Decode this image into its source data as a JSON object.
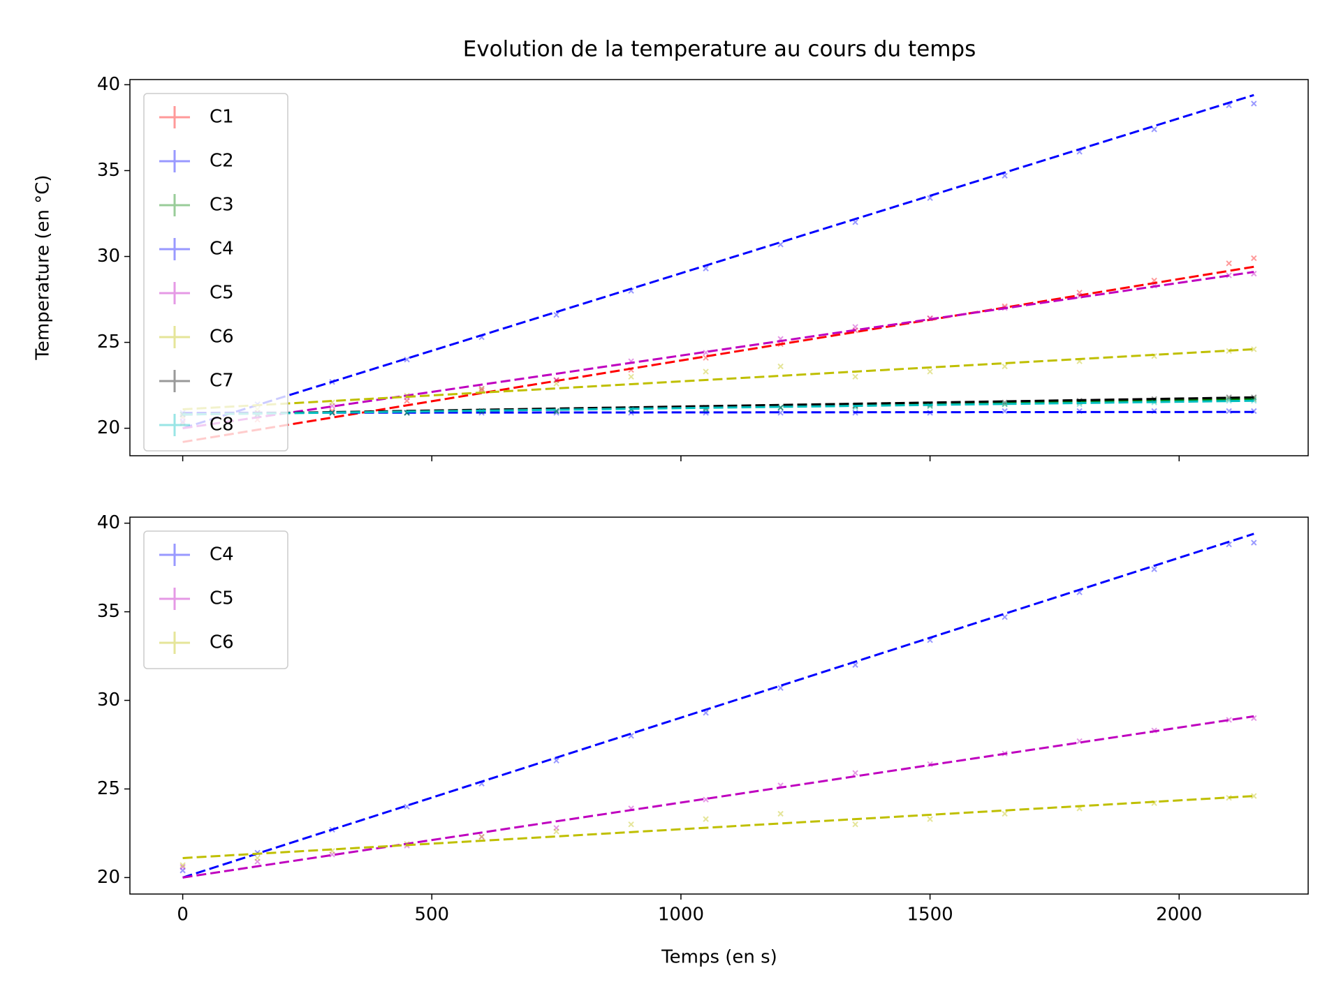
{
  "chart_data": [
    {
      "type": "scatter",
      "title": "Evolution de la temperature au cours du temps",
      "y_label": "Temperature (en °C)",
      "x": [
        0,
        150,
        300,
        450,
        600,
        750,
        900,
        1050,
        1200,
        1350,
        1500,
        1650,
        1800,
        1950,
        2100,
        2150
      ],
      "trend_x": [
        0,
        2150
      ],
      "series": [
        {
          "name": "C1",
          "color": "#ff0000",
          "values": [
            20.3,
            20.5,
            21.0,
            21.6,
            22.2,
            22.8,
            23.4,
            24.1,
            24.9,
            25.7,
            26.4,
            27.1,
            27.9,
            28.6,
            29.6,
            29.9
          ],
          "trend": [
            19.2,
            29.4
          ]
        },
        {
          "name": "C2",
          "color": "#0000ff",
          "values": [
            20.9,
            20.9,
            20.9,
            20.9,
            20.9,
            20.9,
            20.9,
            20.9,
            20.9,
            20.9,
            20.9,
            21.0,
            21.0,
            21.0,
            21.0,
            21.0
          ],
          "trend": [
            20.9,
            20.95
          ]
        },
        {
          "name": "C3",
          "color": "#008000",
          "values": [
            20.8,
            20.8,
            20.9,
            20.9,
            21.0,
            21.0,
            21.1,
            21.1,
            21.2,
            21.3,
            21.3,
            21.4,
            21.5,
            21.6,
            21.7,
            21.7
          ],
          "trend": [
            20.8,
            21.7
          ]
        },
        {
          "name": "C4",
          "color": "#0000ff",
          "values": [
            20.4,
            21.4,
            22.7,
            24.0,
            25.3,
            26.6,
            28.0,
            29.3,
            30.7,
            32.0,
            33.4,
            34.7,
            36.1,
            37.4,
            38.8,
            38.9
          ],
          "trend": [
            20.0,
            39.4
          ]
        },
        {
          "name": "C5",
          "color": "#bf00bf",
          "values": [
            20.6,
            20.9,
            21.3,
            21.8,
            22.3,
            22.8,
            23.9,
            24.4,
            25.2,
            25.9,
            26.4,
            27.0,
            27.7,
            28.3,
            28.9,
            29.0
          ],
          "trend": [
            20.0,
            29.1
          ]
        },
        {
          "name": "C6",
          "color": "#bfbf00",
          "values": [
            20.7,
            21.1,
            21.5,
            21.9,
            22.3,
            22.6,
            23.0,
            23.3,
            23.6,
            23.0,
            23.3,
            23.6,
            23.9,
            24.2,
            24.5,
            24.6
          ],
          "trend": [
            21.1,
            24.6
          ]
        },
        {
          "name": "C7",
          "color": "#000000",
          "values": [
            20.8,
            20.8,
            20.9,
            20.9,
            21.0,
            21.0,
            21.1,
            21.2,
            21.2,
            21.3,
            21.4,
            21.5,
            21.6,
            21.7,
            21.8,
            21.8
          ],
          "trend": [
            20.8,
            21.8
          ]
        },
        {
          "name": "C8",
          "color": "#00bfbf",
          "values": [
            20.8,
            20.8,
            20.9,
            20.9,
            21.0,
            21.0,
            21.1,
            21.1,
            21.2,
            21.2,
            21.3,
            21.4,
            21.4,
            21.5,
            21.6,
            21.6
          ],
          "trend": [
            20.8,
            21.6
          ]
        }
      ],
      "xlim": [
        -106,
        2259
      ],
      "ylim": [
        18.4,
        40.3
      ],
      "xticks": [
        0,
        500,
        1000,
        1500,
        2000
      ],
      "yticks": [
        20,
        25,
        30,
        35,
        40
      ],
      "show_xtick_labels": false,
      "legend": "upper left"
    },
    {
      "type": "scatter",
      "x_label": "Temps (en s)",
      "x": [
        0,
        150,
        300,
        450,
        600,
        750,
        900,
        1050,
        1200,
        1350,
        1500,
        1650,
        1800,
        1950,
        2100,
        2150
      ],
      "trend_x": [
        0,
        2150
      ],
      "series": [
        {
          "name": "C4",
          "color": "#0000ff",
          "values": [
            20.4,
            21.4,
            22.7,
            24.0,
            25.3,
            26.6,
            28.0,
            29.3,
            30.7,
            32.0,
            33.4,
            34.7,
            36.1,
            37.4,
            38.8,
            38.9
          ],
          "trend": [
            20.0,
            39.4
          ]
        },
        {
          "name": "C5",
          "color": "#bf00bf",
          "values": [
            20.6,
            20.9,
            21.3,
            21.8,
            22.3,
            22.8,
            23.9,
            24.4,
            25.2,
            25.9,
            26.4,
            27.0,
            27.7,
            28.3,
            28.9,
            29.0
          ],
          "trend": [
            20.0,
            29.1
          ]
        },
        {
          "name": "C6",
          "color": "#bfbf00",
          "values": [
            20.7,
            21.1,
            21.5,
            21.9,
            22.3,
            22.6,
            23.0,
            23.3,
            23.6,
            23.0,
            23.3,
            23.6,
            23.9,
            24.2,
            24.5,
            24.6
          ],
          "trend": [
            21.1,
            24.6
          ]
        }
      ],
      "xlim": [
        -106,
        2259
      ],
      "ylim": [
        19.07,
        40.34
      ],
      "xticks": [
        0,
        500,
        1000,
        1500,
        2000
      ],
      "yticks": [
        20,
        25,
        30,
        35,
        40
      ],
      "show_xtick_labels": true,
      "legend": "upper left"
    }
  ]
}
